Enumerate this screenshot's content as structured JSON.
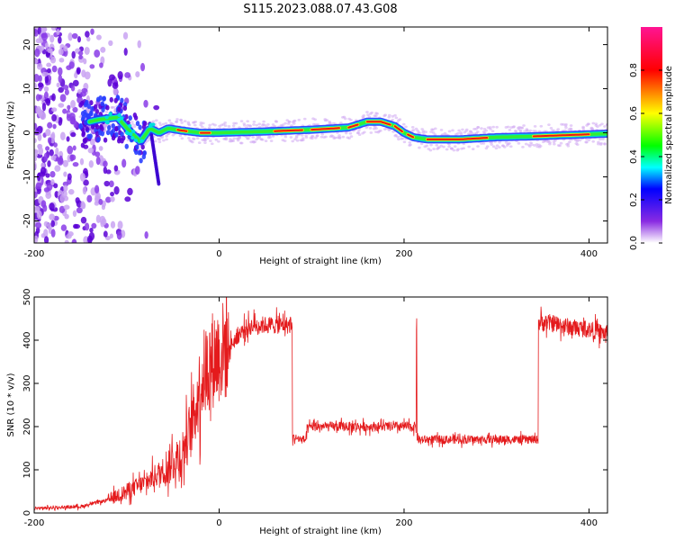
{
  "title": "S115.2023.088.07.43.G08",
  "chart_data": [
    {
      "type": "heatmap",
      "xlabel": "Height of straight line (km)",
      "ylabel": "Frequency (Hz)",
      "xlim": [
        -200,
        420
      ],
      "ylim": [
        -25,
        24
      ],
      "xticks": [
        "-200",
        "0",
        "200",
        "400"
      ],
      "yticks": [
        "20",
        "10",
        "0",
        "-10",
        "-20"
      ],
      "grid": false,
      "ridge": {
        "x": [
          -150,
          -130,
          -110,
          -95,
          -85,
          -75,
          -65,
          -55,
          -40,
          -20,
          0,
          50,
          100,
          140,
          160,
          175,
          190,
          200,
          210,
          225,
          260,
          300,
          340,
          380,
          420
        ],
        "y": [
          2,
          3,
          3.5,
          0,
          -2,
          1,
          0,
          1,
          0.5,
          0,
          0,
          0.3,
          0.7,
          1.2,
          2.5,
          2.5,
          1.5,
          0,
          -1,
          -1.5,
          -1.5,
          -1,
          -0.8,
          -0.5,
          -0.2
        ]
      },
      "colorbar": {
        "label": "Normalized spectral amplitude",
        "ticks": [
          "0.0",
          "0.2",
          "0.4",
          "0.6",
          "0.8"
        ],
        "range": [
          0,
          1
        ],
        "colors": [
          "#ffffff",
          "#8a2be2",
          "#0000ff",
          "#00ffff",
          "#00ff00",
          "#ffff00",
          "#ff0000",
          "#ff1493"
        ]
      }
    },
    {
      "type": "line",
      "xlabel": "Height of straight line (km)",
      "ylabel": "SNR (10 * v/v)",
      "xlim": [
        -200,
        420
      ],
      "ylim": [
        0,
        500
      ],
      "xticks": [
        "-200",
        "0",
        "200",
        "400"
      ],
      "yticks": [
        "500",
        "400",
        "300",
        "200",
        "100",
        "0"
      ],
      "grid": false,
      "color": "#e41a1c",
      "series": [
        {
          "x": [
            -207,
            -180,
            -150,
            -120,
            -100,
            -80,
            -60,
            -40,
            -30,
            -25,
            -20,
            -15,
            -10,
            0,
            10,
            20,
            30,
            40,
            50,
            60,
            70,
            79,
            80,
            90,
            95,
            96,
            100,
            120,
            150,
            180,
            200,
            210,
            213,
            214,
            215,
            216,
            220,
            250,
            280,
            300,
            330,
            345,
            346,
            350,
            360,
            380,
            400,
            420
          ],
          "y": [
            10,
            12,
            15,
            30,
            50,
            70,
            100,
            140,
            200,
            250,
            300,
            330,
            350,
            370,
            380,
            410,
            430,
            435,
            435,
            435,
            435,
            435,
            175,
            170,
            170,
            195,
            200,
            200,
            200,
            200,
            200,
            200,
            200,
            440,
            175,
            170,
            170,
            170,
            170,
            170,
            170,
            170,
            440,
            440,
            440,
            430,
            425,
            415
          ]
        }
      ]
    }
  ]
}
